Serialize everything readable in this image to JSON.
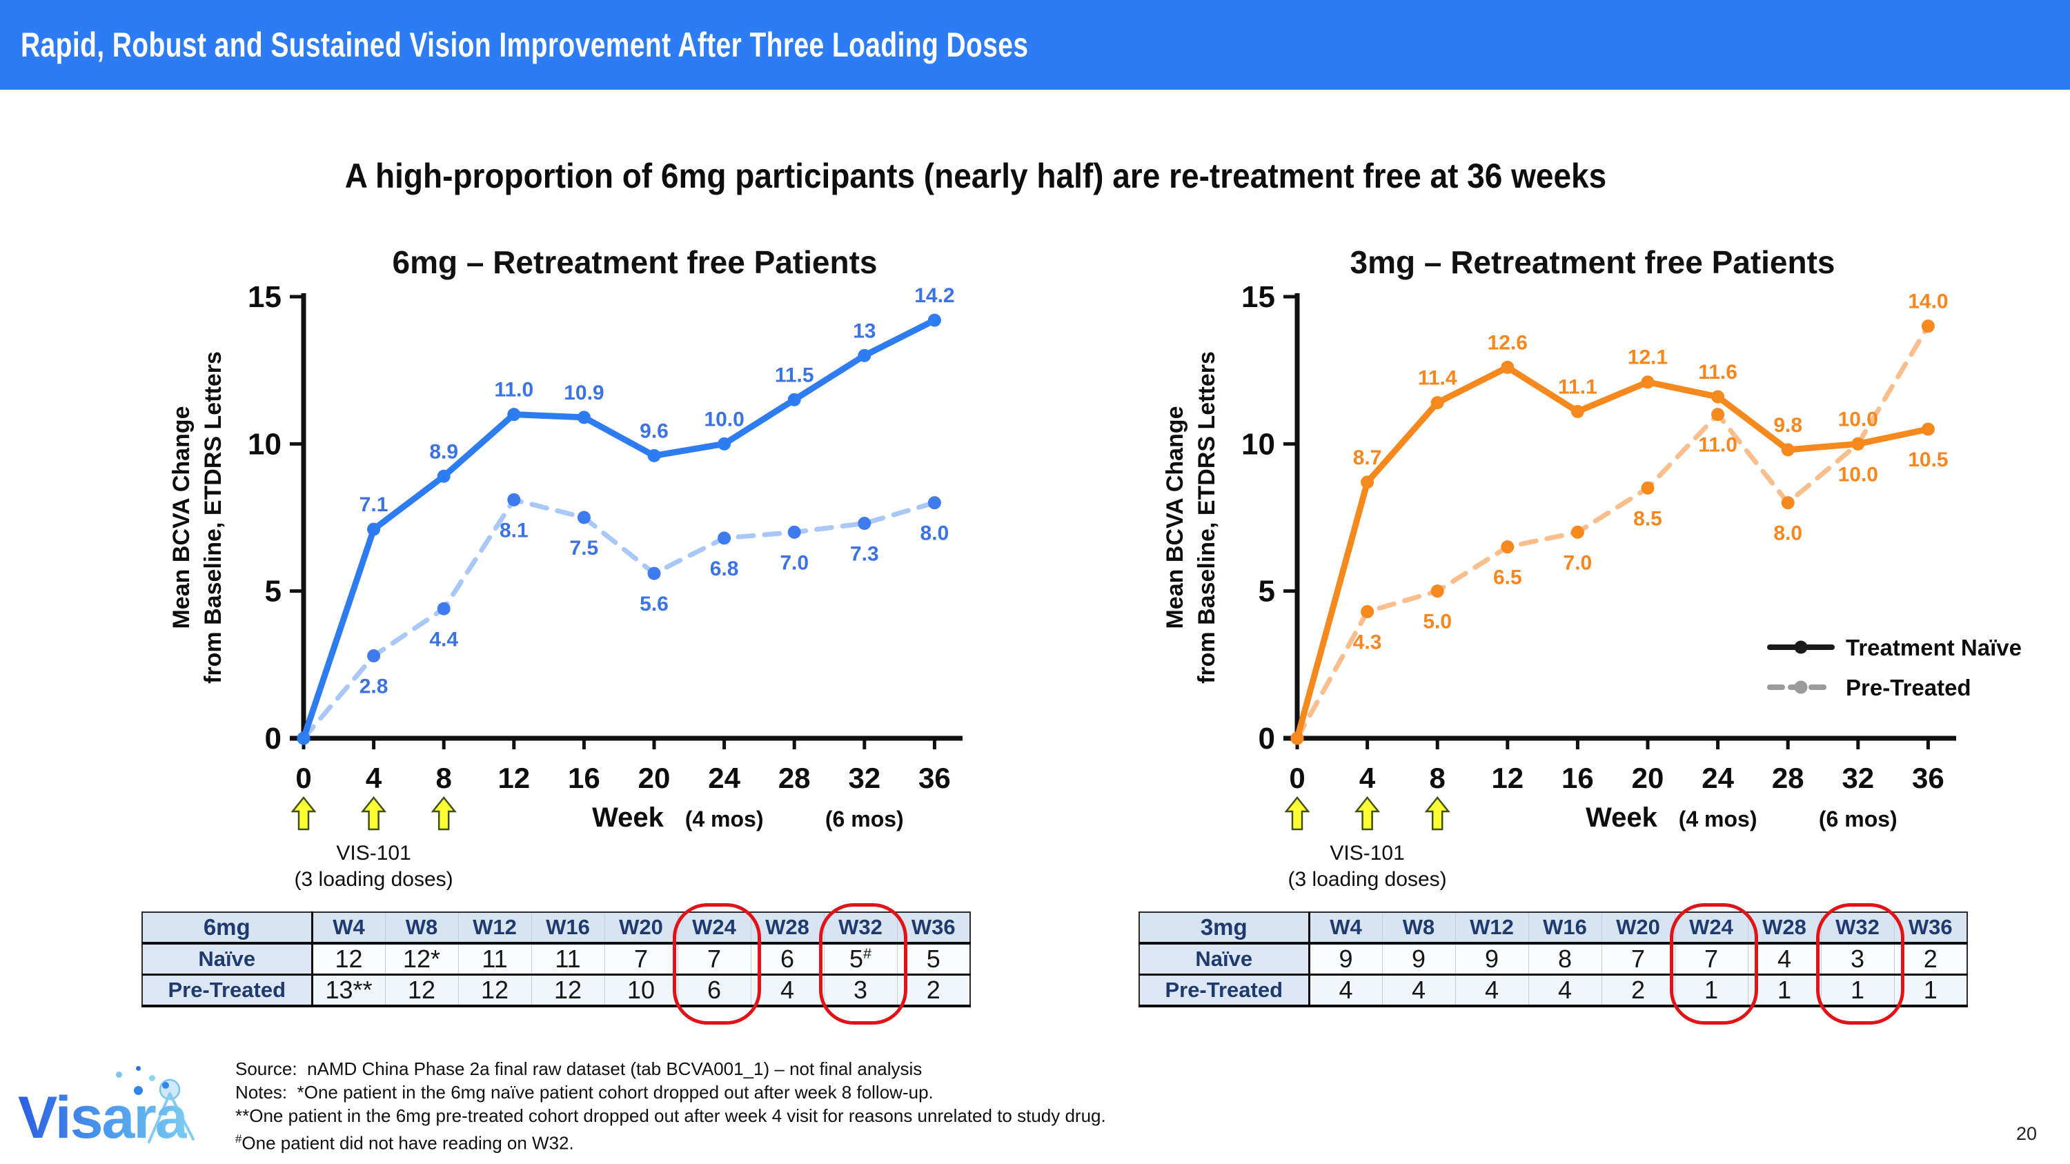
{
  "slide": {
    "title": "Rapid, Robust and Sustained Vision Improvement After Three Loading Doses",
    "subtitle": "A high-proportion of 6mg participants (nearly half) are re-treatment free at 36 weeks",
    "page_number": "20",
    "accent_color": "#2E7CF4"
  },
  "chart_data": [
    {
      "type": "line",
      "id": "6mg",
      "title": "6mg – Retreatment free Patients",
      "ylabel_lines": [
        "Mean BCVA Change",
        "from Baseline, ETDRS Letters"
      ],
      "xlabel": "Week",
      "x": [
        0,
        4,
        8,
        12,
        16,
        20,
        24,
        28,
        32,
        36
      ],
      "ylim": [
        0,
        15
      ],
      "yticks": [
        0,
        5,
        10,
        15
      ],
      "grid": false,
      "series": [
        {
          "name": "Treatment Naïve",
          "style": "solid",
          "line_color": "#2E7CF2",
          "marker_color": "#2E7CF2",
          "label_color": "#3C73E4",
          "values": [
            0,
            7.1,
            8.9,
            11.0,
            10.9,
            9.6,
            10.0,
            11.5,
            13,
            14.2
          ],
          "labels": [
            "",
            "7.1",
            "8.9",
            "11.0",
            "10.9",
            "9.6",
            "10.0",
            "11.5",
            "13",
            "14.2"
          ],
          "label_pos": [
            "",
            "above",
            "above",
            "above",
            "above",
            "above",
            "above",
            "above",
            "above",
            "above"
          ]
        },
        {
          "name": "Pre-Treated",
          "style": "dashed",
          "line_color": "#A9C8F8",
          "marker_color": "#3E7BEE",
          "label_color": "#3C73E4",
          "values": [
            0,
            2.8,
            4.4,
            8.1,
            7.5,
            5.6,
            6.8,
            7.0,
            7.3,
            8.0
          ],
          "labels": [
            "",
            "2.8",
            "4.4",
            "8.1",
            "7.5",
            "5.6",
            "6.8",
            "7.0",
            "7.3",
            "8.0"
          ],
          "label_pos": [
            "",
            "below",
            "below",
            "below",
            "below",
            "below",
            "below",
            "below",
            "below",
            "below"
          ]
        }
      ],
      "week_annotations": [
        {
          "week": 24,
          "text": "(4 mos)"
        },
        {
          "week": 32,
          "text": "(6 mos)"
        }
      ],
      "injections": {
        "weeks": [
          0,
          4,
          8
        ],
        "label": "VIS-101",
        "sublabel": "(3 loading doses)"
      }
    },
    {
      "type": "line",
      "id": "3mg",
      "title": "3mg – Retreatment free Patients",
      "ylabel_lines": [
        "Mean BCVA Change",
        "from Baseline, ETDRS Letters"
      ],
      "xlabel": "Week",
      "x": [
        0,
        4,
        8,
        12,
        16,
        20,
        24,
        28,
        32,
        36
      ],
      "ylim": [
        0,
        15
      ],
      "yticks": [
        0,
        5,
        10,
        15
      ],
      "grid": false,
      "series": [
        {
          "name": "Treatment Naïve",
          "style": "solid",
          "line_color": "#F6891E",
          "marker_color": "#F6891E",
          "label_color": "#F6871F",
          "values": [
            0,
            8.7,
            11.4,
            12.6,
            11.1,
            12.1,
            11.6,
            9.8,
            10.0,
            10.5
          ],
          "labels": [
            "",
            "8.7",
            "11.4",
            "12.6",
            "11.1",
            "12.1",
            "11.6",
            "9.8",
            "10.0",
            "10.5"
          ],
          "label_pos": [
            "",
            "above",
            "above",
            "above",
            "above",
            "above",
            "above",
            "above",
            "below",
            "below"
          ]
        },
        {
          "name": "Pre-Treated",
          "style": "dashed",
          "line_color": "#F9BE8B",
          "marker_color": "#F6891E",
          "label_color": "#F6871F",
          "values": [
            0,
            4.3,
            5.0,
            6.5,
            7.0,
            8.5,
            11.0,
            8.0,
            10.0,
            14.0
          ],
          "labels": [
            "",
            "4.3",
            "5.0",
            "6.5",
            "7.0",
            "8.5",
            "11.0",
            "8.0",
            "10.0",
            "14.0"
          ],
          "label_pos": [
            "",
            "below",
            "below",
            "below",
            "below",
            "below",
            "below",
            "below",
            "above",
            "above"
          ]
        }
      ],
      "legend": {
        "position": "right-middle",
        "items": [
          {
            "label": "Treatment Naïve",
            "swatch_color": "#1A1A1A",
            "swatch_style": "solid"
          },
          {
            "label": "Pre-Treated",
            "swatch_color": "#9B9B9B",
            "swatch_style": "dashed"
          }
        ]
      },
      "week_annotations": [
        {
          "week": 24,
          "text": "(4 mos)"
        },
        {
          "week": 32,
          "text": "(6 mos)"
        }
      ],
      "injections": {
        "weeks": [
          0,
          4,
          8
        ],
        "label": "VIS-101",
        "sublabel": "(3 loading doses)"
      }
    }
  ],
  "tables": [
    {
      "dose": "6mg",
      "columns": [
        "W4",
        "W8",
        "W12",
        "W16",
        "W20",
        "W24",
        "W28",
        "W32",
        "W36"
      ],
      "rows": [
        {
          "label": "Naïve",
          "cells": [
            "12",
            "12*",
            "11",
            "11",
            "7",
            "7",
            "6",
            "5#",
            "5"
          ]
        },
        {
          "label": "Pre-Treated",
          "cells": [
            "13**",
            "12",
            "12",
            "12",
            "10",
            "6",
            "4",
            "3",
            "2"
          ]
        }
      ],
      "highlighted_columns": [
        "W24",
        "W32"
      ],
      "highlight_color": "#E21219"
    },
    {
      "dose": "3mg",
      "columns": [
        "W4",
        "W8",
        "W12",
        "W16",
        "W20",
        "W24",
        "W28",
        "W32",
        "W36"
      ],
      "rows": [
        {
          "label": "Naïve",
          "cells": [
            "9",
            "9",
            "9",
            "8",
            "7",
            "7",
            "4",
            "3",
            "2"
          ]
        },
        {
          "label": "Pre-Treated",
          "cells": [
            "4",
            "4",
            "4",
            "4",
            "2",
            "1",
            "1",
            "1",
            "1"
          ]
        }
      ],
      "highlighted_columns": [
        "W24",
        "W32"
      ],
      "highlight_color": "#E21219"
    }
  ],
  "footnotes": {
    "source_label": "Source:",
    "source_text": "nAMD China Phase 2a final raw dataset (tab BCVA001_1) – not final analysis",
    "notes_label": "Notes:",
    "note1": "*One patient in the 6mg naïve patient cohort dropped out after week 8 follow-up.",
    "note2": "**One patient in the 6mg pre-treated cohort dropped out after week 4 visit for reasons unrelated to study drug.",
    "note3_marker": "#",
    "note3": "One patient did not have reading on W32."
  },
  "logo": {
    "text": "Visara"
  }
}
